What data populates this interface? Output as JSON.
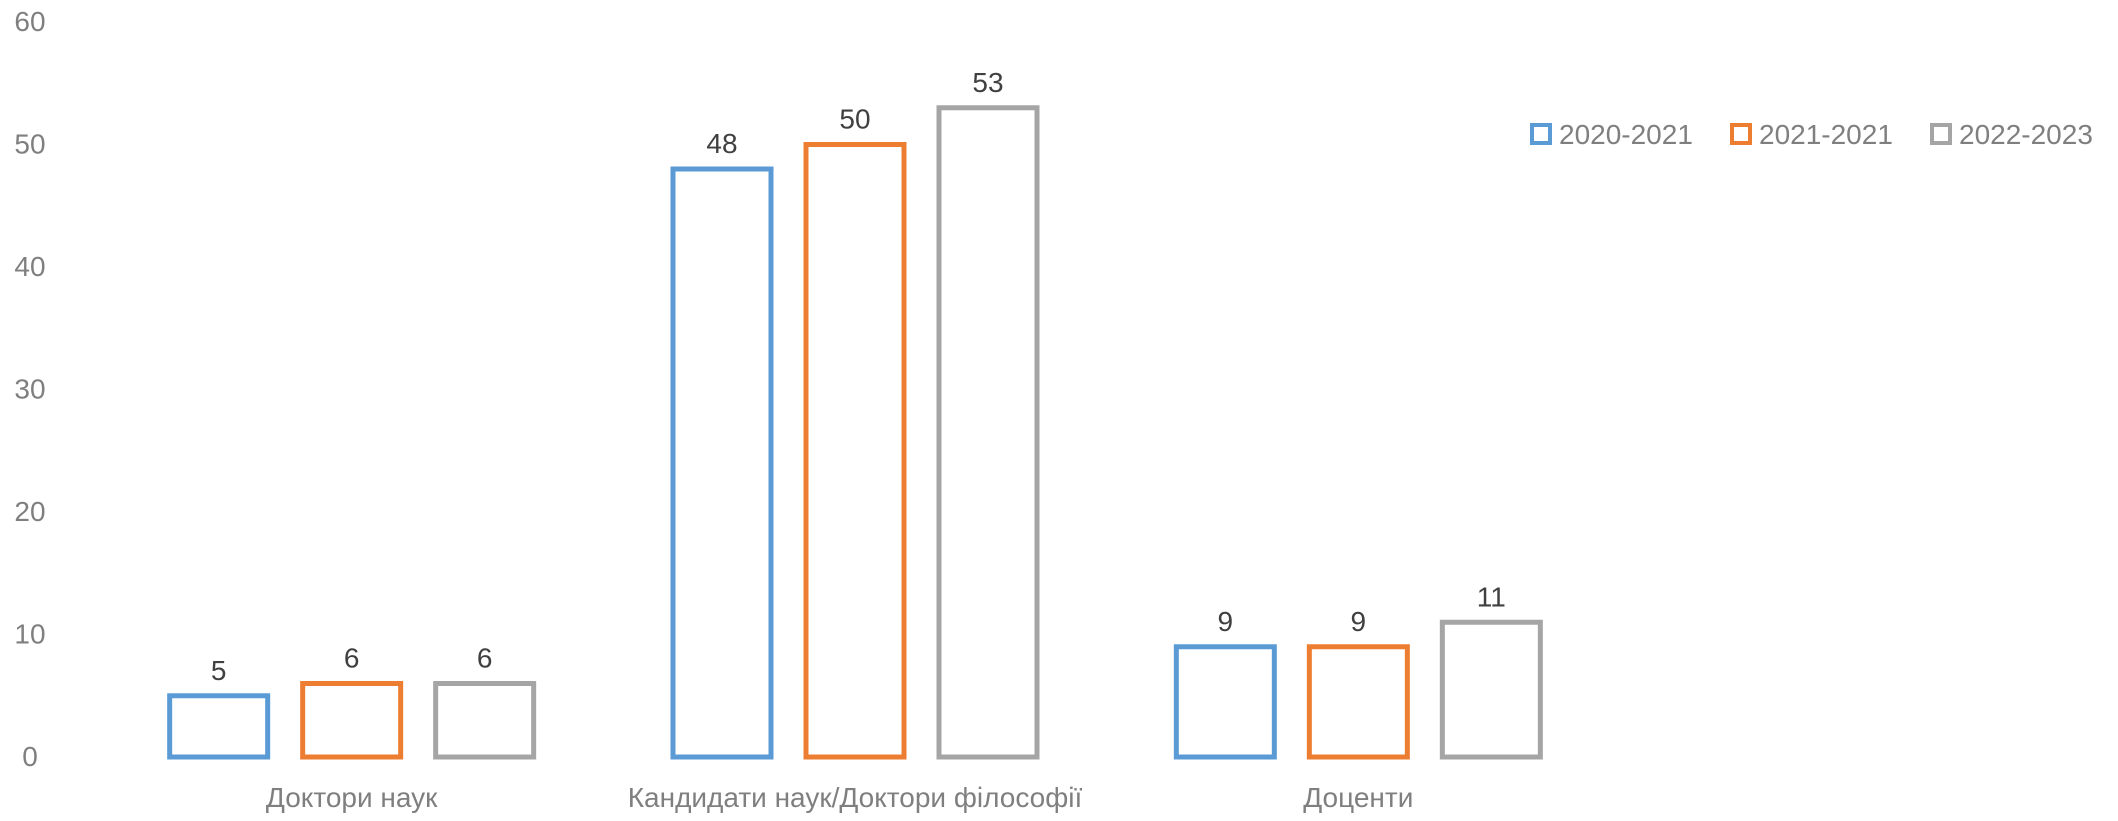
{
  "chart_data": {
    "type": "bar",
    "title": "",
    "xlabel": "",
    "ylabel": "",
    "categories": [
      "Доктори наук",
      "Кандидати наук/Доктори філософії",
      "Доценти"
    ],
    "series": [
      {
        "name": "2020-2021",
        "color": "#5B9BD5",
        "values": [
          5,
          48,
          9
        ]
      },
      {
        "name": "2021-2021",
        "color": "#ED7D31",
        "values": [
          6,
          50,
          9
        ]
      },
      {
        "name": "2022-2023",
        "color": "#A5A5A5",
        "values": [
          6,
          53,
          11
        ]
      }
    ],
    "ylim": [
      0,
      60
    ],
    "yticks": [
      "0",
      "10",
      "20",
      "30",
      "40",
      "50",
      "60"
    ],
    "grid": false,
    "legend_position": "top-right",
    "bar_style": "outlined",
    "axis_text_color": "#7F7F7F",
    "data_label_color": "#404040"
  }
}
